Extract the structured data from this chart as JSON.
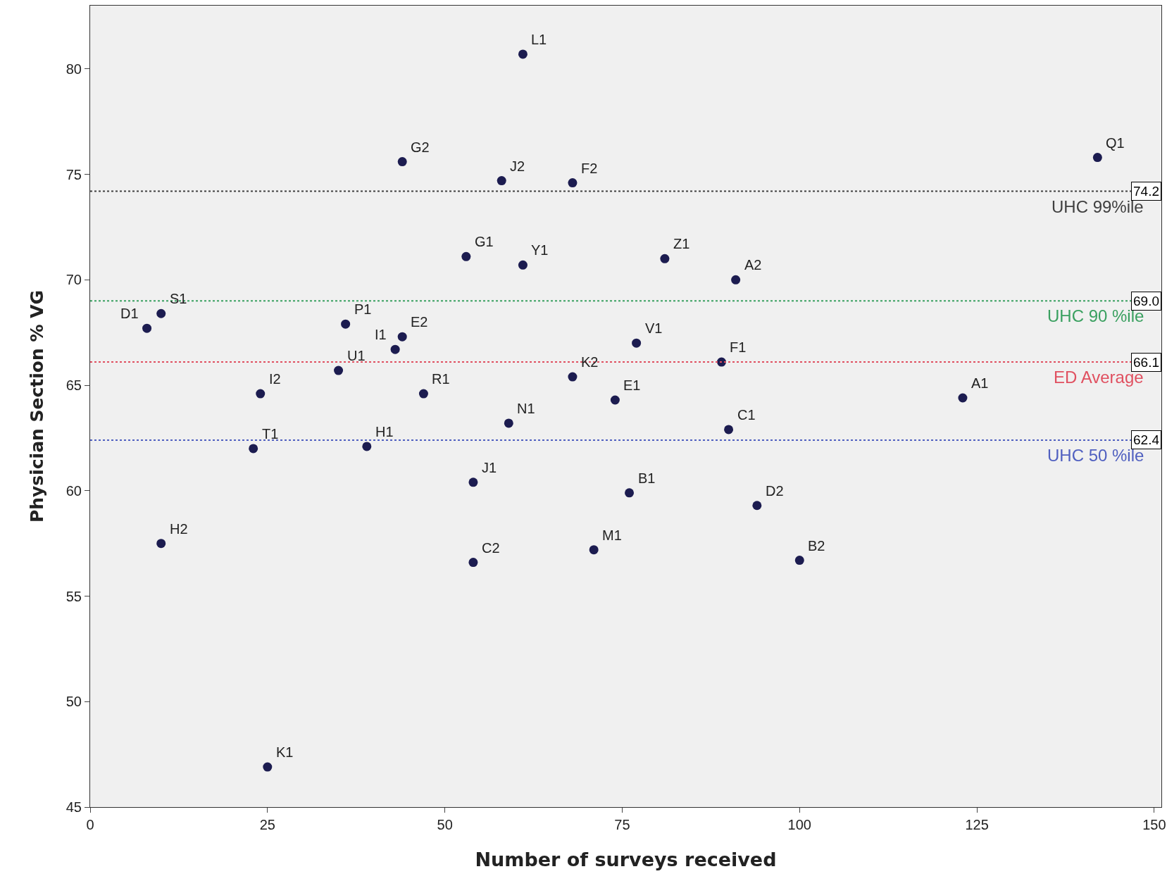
{
  "chart_data": {
    "type": "scatter",
    "xlabel": "Number of surveys received",
    "ylabel": "Physician Section % VG",
    "xlim": [
      0,
      151
    ],
    "xticks": [
      0,
      25,
      50,
      75,
      100,
      125,
      150
    ],
    "ylim": [
      45,
      83
    ],
    "yticks": [
      45,
      50,
      55,
      60,
      65,
      70,
      75,
      80
    ],
    "grid": false,
    "marker": "circle",
    "series": [
      {
        "color": "#1c1c50",
        "x": [
          61,
          44,
          58,
          68,
          142,
          53,
          61,
          81,
          91,
          10,
          8,
          36,
          44,
          43,
          35,
          77,
          89,
          68,
          74,
          123,
          24,
          47,
          59,
          90,
          23,
          39,
          54,
          76,
          94,
          10,
          71,
          54,
          100,
          25
        ],
        "values": [
          80.7,
          75.6,
          74.7,
          74.6,
          75.8,
          71.1,
          70.7,
          71.0,
          70.0,
          68.4,
          67.7,
          67.9,
          67.3,
          66.7,
          65.7,
          67.0,
          66.1,
          65.4,
          64.3,
          64.4,
          64.6,
          64.6,
          63.2,
          62.9,
          62.0,
          62.1,
          60.4,
          59.9,
          59.3,
          57.5,
          57.2,
          56.6,
          56.7,
          46.9
        ]
      }
    ],
    "ref_lines": [
      {
        "axis": "y",
        "value": 74.2,
        "label": "UHC 99%ile",
        "color": "#404040",
        "line_style": "dotted"
      },
      {
        "axis": "y",
        "value": 69.0,
        "label": "UHC 90 %ile",
        "color": "#3aa060",
        "line_style": "dotted"
      },
      {
        "axis": "y",
        "value": 66.1,
        "label": "ED Average",
        "color": "#e05060",
        "line_style": "dotted"
      },
      {
        "axis": "y",
        "value": 62.4,
        "label": "UHC 50 %ile",
        "color": "#5060c0",
        "line_style": "dotted"
      }
    ],
    "annotations": [
      {
        "text": "74.2",
        "x": 151,
        "y": 74.2
      },
      {
        "text": "69.0",
        "x": 151,
        "y": 69.0
      },
      {
        "text": "66.1",
        "x": 151,
        "y": 66.1
      },
      {
        "text": "62.4",
        "x": 151,
        "y": 62.4
      },
      {
        "text": "L1",
        "x": 61,
        "y": 80.7
      },
      {
        "text": "G2",
        "x": 44,
        "y": 75.6
      },
      {
        "text": "J2",
        "x": 58,
        "y": 74.7
      },
      {
        "text": "F2",
        "x": 68,
        "y": 74.6
      },
      {
        "text": "Q1",
        "x": 142,
        "y": 75.8
      },
      {
        "text": "G1",
        "x": 53,
        "y": 71.1
      },
      {
        "text": "Y1",
        "x": 61,
        "y": 70.7
      },
      {
        "text": "Z1",
        "x": 81,
        "y": 71.0
      },
      {
        "text": "A2",
        "x": 91,
        "y": 70.0
      },
      {
        "text": "S1",
        "x": 10,
        "y": 68.4
      },
      {
        "text": "D1",
        "x": 8,
        "y": 67.7
      },
      {
        "text": "P1",
        "x": 36,
        "y": 67.9
      },
      {
        "text": "E2",
        "x": 44,
        "y": 67.3
      },
      {
        "text": "I1",
        "x": 43,
        "y": 66.7
      },
      {
        "text": "U1",
        "x": 35,
        "y": 65.7
      },
      {
        "text": "V1",
        "x": 77,
        "y": 67.0
      },
      {
        "text": "F1",
        "x": 89,
        "y": 66.1
      },
      {
        "text": "K2",
        "x": 68,
        "y": 65.4
      },
      {
        "text": "E1",
        "x": 74,
        "y": 64.3
      },
      {
        "text": "A1",
        "x": 123,
        "y": 64.4
      },
      {
        "text": "I2",
        "x": 24,
        "y": 64.6
      },
      {
        "text": "R1",
        "x": 47,
        "y": 64.6
      },
      {
        "text": "N1",
        "x": 59,
        "y": 63.2
      },
      {
        "text": "C1",
        "x": 90,
        "y": 62.9
      },
      {
        "text": "T1",
        "x": 23,
        "y": 62.0
      },
      {
        "text": "H1",
        "x": 39,
        "y": 62.1
      },
      {
        "text": "J1",
        "x": 54,
        "y": 60.4
      },
      {
        "text": "B1",
        "x": 76,
        "y": 59.9
      },
      {
        "text": "D2",
        "x": 94,
        "y": 59.3
      },
      {
        "text": "H2",
        "x": 10,
        "y": 57.5
      },
      {
        "text": "M1",
        "x": 71,
        "y": 57.2
      },
      {
        "text": "C2",
        "x": 54,
        "y": 56.6
      },
      {
        "text": "B2",
        "x": 100,
        "y": 56.7
      },
      {
        "text": "K1",
        "x": 25,
        "y": 46.9
      }
    ]
  }
}
